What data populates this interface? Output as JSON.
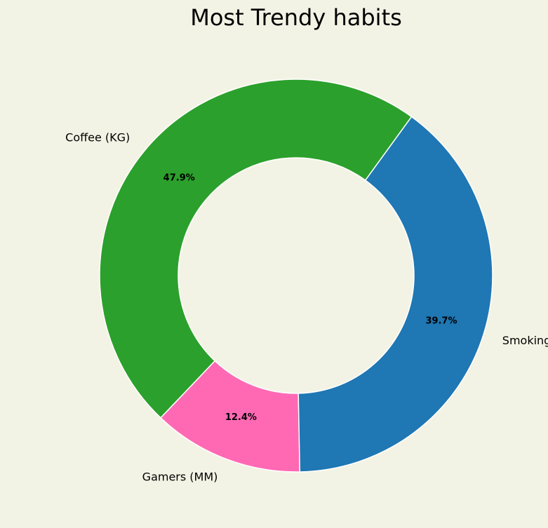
{
  "chart_data": {
    "type": "pie",
    "variant": "donut",
    "title": "Most Trendy habits",
    "slices": [
      {
        "label": "Coffee (KG)",
        "value": 47.9,
        "pct_label": "47.9%",
        "color": "#2ca02c"
      },
      {
        "label": "Gamers (MM)",
        "value": 12.4,
        "pct_label": "12.4%",
        "color": "#ff69b4"
      },
      {
        "label": "Smoking Rate (%)",
        "value": 39.7,
        "pct_label": "39.7%",
        "color": "#1f77b4"
      }
    ],
    "background": "#f3f3e5",
    "edge_color": "#ffffff"
  }
}
